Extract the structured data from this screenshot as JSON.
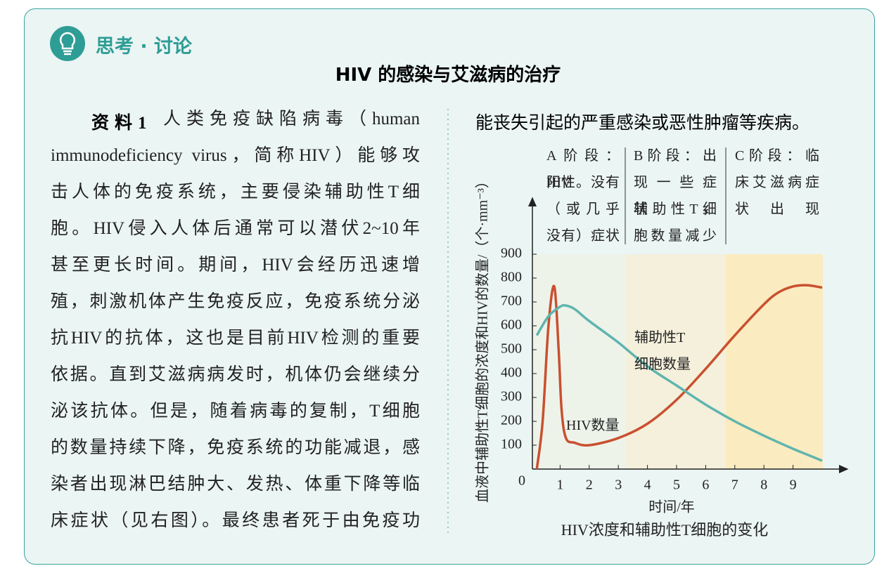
{
  "header": {
    "section": "思考 · 讨论",
    "title": "HIV 的感染与艾滋病的治疗"
  },
  "text": {
    "label": "资料1",
    "lines": [
      "人类免疫缺陷病毒（human",
      "immunodeficiency virus，简称HIV）能够攻",
      "击人体的免疫系统，主要侵染辅助性T细",
      "胞。HIV侵入人体后通常可以潜伏2~10年",
      "甚至更长时间。期间，HIV会经历迅速增",
      "殖，刺激机体产生免疫反应，免疫系统分泌",
      "抗HIV的抗体，这也是目前HIV检测的重要",
      "依据。直到艾滋病病发时，机体仍会继续分",
      "泌该抗体。但是，随着病毒的复制，T细胞",
      "的数量持续下降，免疫系统的功能减退，感",
      "染者出现淋巴结肿大、发热、体重下降等临",
      "床症状（见右图）。最终患者死于由免疫功"
    ],
    "continuation": "能丧失引起的严重感染或恶性肿瘤等疾病。"
  },
  "chart_data": {
    "type": "line",
    "stages": [
      {
        "lines": [
          "A阶段：HIV",
          "阳性。没有",
          "（或几乎",
          "没有）症状"
        ]
      },
      {
        "lines": [
          "B阶段：出",
          "现一些症状，",
          "辅助性T细",
          "胞数量减少"
        ]
      },
      {
        "lines": [
          "C阶段：临",
          "床艾滋病症",
          "状出现"
        ]
      }
    ],
    "ylabel": "血液中辅助性T细胞的浓度和HIV的数量/（个·mm⁻³）",
    "xlabel": "时间/年",
    "caption": "HIV浓度和辅助性T细胞的变化",
    "xlim": [
      0,
      10
    ],
    "ylim": [
      0,
      900
    ],
    "xticks": [
      1,
      2,
      3,
      4,
      5,
      6,
      7,
      8,
      9
    ],
    "yticks": [
      0,
      100,
      200,
      300,
      400,
      500,
      600,
      700,
      800,
      900
    ],
    "series": [
      {
        "name": "HIV数量",
        "color": "#c9502f",
        "x": [
          0.2,
          0.4,
          0.6,
          0.8,
          0.95,
          1.05,
          1.2,
          1.5,
          2,
          3,
          4,
          5,
          6,
          7,
          8,
          8.5,
          9,
          9.5,
          10
        ],
        "values": [
          0,
          200,
          600,
          765,
          500,
          250,
          130,
          110,
          100,
          130,
          190,
          290,
          420,
          560,
          690,
          740,
          765,
          770,
          760
        ]
      },
      {
        "name": "辅助性T细胞数量",
        "color": "#5fb5ae",
        "x": [
          0.2,
          0.6,
          1,
          1.2,
          1.5,
          2,
          3,
          4,
          5,
          6,
          7,
          8,
          9,
          9.5,
          10
        ],
        "values": [
          560,
          640,
          680,
          685,
          670,
          620,
          530,
          430,
          350,
          270,
          200,
          140,
          85,
          60,
          35
        ]
      }
    ]
  }
}
